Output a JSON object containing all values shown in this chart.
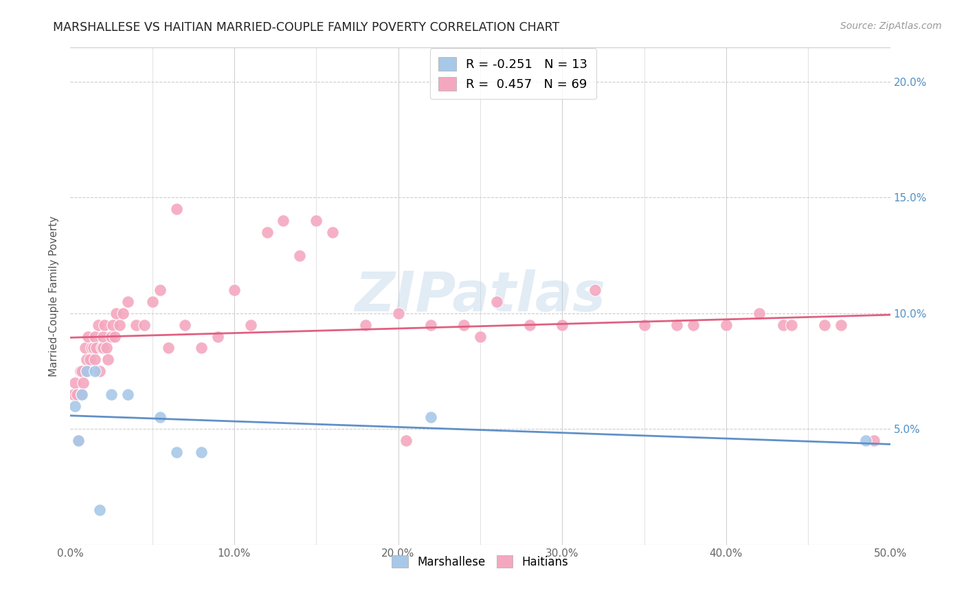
{
  "title": "MARSHALLESE VS HAITIAN MARRIED-COUPLE FAMILY POVERTY CORRELATION CHART",
  "source": "Source: ZipAtlas.com",
  "ylabel": "Married-Couple Family Poverty",
  "x_tick_labels": [
    "0.0%",
    "10.0%",
    "20.0%",
    "30.0%",
    "40.0%",
    "50.0%"
  ],
  "x_tick_values": [
    0.0,
    10.0,
    20.0,
    30.0,
    40.0,
    50.0
  ],
  "x_minor_ticks": [
    5.0,
    15.0,
    25.0,
    35.0,
    45.0
  ],
  "y_tick_labels": [
    "5.0%",
    "10.0%",
    "15.0%",
    "20.0%"
  ],
  "y_tick_values": [
    5.0,
    10.0,
    15.0,
    20.0
  ],
  "xlim": [
    0.0,
    50.0
  ],
  "ylim": [
    0.0,
    21.5
  ],
  "marshallese_color": "#a8c8e8",
  "haitian_color": "#f4a8c0",
  "marshallese_line_color": "#6090c8",
  "haitian_line_color": "#e06080",
  "watermark": "ZIPatlas",
  "watermark_color": "#b8d0e8",
  "legend_label1": "Marshallese",
  "legend_label2": "Haitians",
  "legend_r1": "R = -0.251",
  "legend_n1": "N = 13",
  "legend_r2": "R =  0.457",
  "legend_n2": "N = 69",
  "marshallese_points_x": [
    0.3,
    0.5,
    0.7,
    1.0,
    1.5,
    2.5,
    3.5,
    5.5,
    6.5,
    8.0,
    22.0,
    48.5,
    1.8
  ],
  "marshallese_points_y": [
    6.0,
    4.5,
    6.5,
    7.5,
    7.5,
    6.5,
    6.5,
    5.5,
    4.0,
    4.0,
    5.5,
    4.5,
    1.5
  ],
  "haitian_points_x": [
    0.2,
    0.3,
    0.4,
    0.5,
    0.6,
    0.7,
    0.7,
    0.8,
    0.9,
    1.0,
    1.0,
    1.1,
    1.2,
    1.3,
    1.4,
    1.5,
    1.5,
    1.6,
    1.7,
    1.8,
    1.9,
    2.0,
    2.0,
    2.1,
    2.2,
    2.3,
    2.5,
    2.6,
    2.7,
    2.8,
    3.0,
    3.2,
    3.5,
    4.0,
    4.5,
    5.0,
    5.5,
    6.0,
    6.5,
    7.0,
    8.0,
    9.0,
    10.0,
    11.0,
    12.0,
    13.0,
    14.0,
    15.0,
    16.0,
    18.0,
    20.0,
    20.5,
    22.0,
    24.0,
    25.0,
    26.0,
    28.0,
    30.0,
    32.0,
    35.0,
    37.0,
    38.0,
    40.0,
    42.0,
    43.5,
    44.0,
    46.0,
    47.0,
    49.0
  ],
  "haitian_points_y": [
    6.5,
    7.0,
    6.5,
    4.5,
    7.5,
    6.5,
    7.5,
    7.0,
    8.5,
    7.5,
    8.0,
    9.0,
    8.0,
    8.5,
    8.5,
    8.0,
    9.0,
    8.5,
    9.5,
    7.5,
    8.5,
    8.5,
    9.0,
    9.5,
    8.5,
    8.0,
    9.0,
    9.5,
    9.0,
    10.0,
    9.5,
    10.0,
    10.5,
    9.5,
    9.5,
    10.5,
    11.0,
    8.5,
    14.5,
    9.5,
    8.5,
    9.0,
    11.0,
    9.5,
    13.5,
    14.0,
    12.5,
    14.0,
    13.5,
    9.5,
    10.0,
    4.5,
    9.5,
    9.5,
    9.0,
    10.5,
    9.5,
    9.5,
    11.0,
    9.5,
    9.5,
    9.5,
    9.5,
    10.0,
    9.5,
    9.5,
    9.5,
    9.5,
    4.5
  ]
}
